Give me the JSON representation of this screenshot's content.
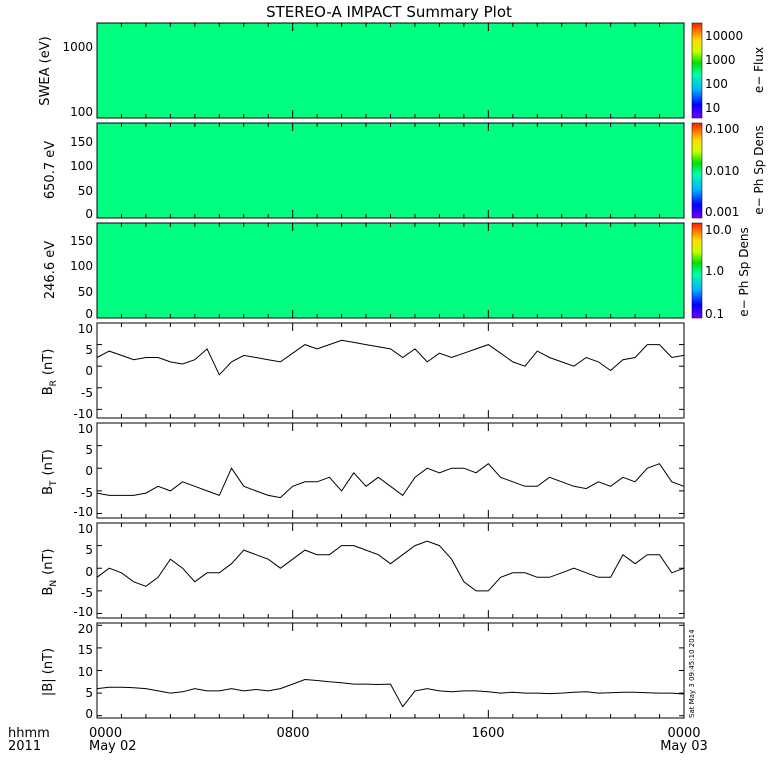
{
  "chart_data": {
    "type": "multi-panel",
    "title": "STEREO-A IMPACT Summary Plot",
    "stamp": "Sat May  3 09:45:10 2014",
    "x_axis": {
      "ticks": [
        "0000",
        "0800",
        "1600",
        "0000"
      ],
      "sub_labels": [
        "May 02",
        "",
        "",
        "May 03"
      ],
      "left_label_top": "hhmm",
      "left_label_bottom": "2011",
      "range_hours": [
        0,
        24
      ]
    },
    "spectrograms": [
      {
        "ylabel": "SWEA (eV)",
        "y_scale": "log",
        "ylim": [
          90,
          2000
        ],
        "yticks": [
          "1000",
          "100"
        ],
        "colorbar": {
          "label": "e− Flux",
          "scale": "log",
          "range": [
            5,
            30000
          ],
          "ticks": [
            "10000",
            "1000",
            "100",
            "10"
          ]
        }
      },
      {
        "ylabel": "650.7 eV",
        "y_scale": "linear",
        "ylim": [
          0,
          180
        ],
        "yticks": [
          "150",
          "100",
          "50",
          "0"
        ],
        "colorbar": {
          "label": "e− Ph Sp Dens",
          "scale": "log",
          "range": [
            0.001,
            0.1
          ],
          "ticks": [
            "0.100",
            "0.010",
            "0.001"
          ]
        }
      },
      {
        "ylabel": "246.6 eV",
        "y_scale": "linear",
        "ylim": [
          0,
          180
        ],
        "yticks": [
          "150",
          "100",
          "50",
          "0"
        ],
        "colorbar": {
          "label": "e− Ph Sp Dens",
          "scale": "log",
          "range": [
            0.1,
            10
          ],
          "ticks": [
            "10.0",
            "1.0",
            "0.1"
          ]
        }
      }
    ],
    "line_panels": [
      {
        "ylabel_main": "B",
        "ylabel_sub": "R",
        "ylabel_unit": "(nT)",
        "ylim": [
          -12,
          10
        ],
        "yticks": [
          "10",
          "5",
          "0",
          "-5",
          "-10"
        ],
        "x": [
          0,
          0.5,
          1,
          1.5,
          2,
          2.5,
          3,
          3.5,
          4,
          4.5,
          5,
          5.5,
          6,
          6.5,
          7,
          7.5,
          8,
          8.5,
          9,
          9.5,
          10,
          10.5,
          11,
          11.5,
          12,
          12.5,
          13,
          13.5,
          14,
          14.5,
          15,
          15.5,
          16,
          16.5,
          17,
          17.5,
          18,
          18.5,
          19,
          19.5,
          20,
          20.5,
          21,
          21.5,
          22,
          22.5,
          23,
          23.5,
          24
        ],
        "y": [
          2,
          3.5,
          2.5,
          1.5,
          2,
          2,
          1,
          0.5,
          1.5,
          4,
          -2,
          1,
          2.5,
          2,
          1.5,
          1,
          3,
          5,
          4,
          5,
          6,
          5.5,
          5,
          4.5,
          4,
          2,
          4,
          1,
          3,
          2,
          3,
          4,
          5,
          3,
          1,
          0,
          3.5,
          2,
          1,
          0,
          2,
          1,
          -1,
          1.5,
          2,
          5,
          5,
          2,
          2.5
        ]
      },
      {
        "ylabel_main": "B",
        "ylabel_sub": "T",
        "ylabel_unit": "(nT)",
        "ylim": [
          -11,
          10
        ],
        "yticks": [
          "10",
          "5",
          "0",
          "-5",
          "-10"
        ],
        "x": [
          0,
          0.5,
          1,
          1.5,
          2,
          2.5,
          3,
          3.5,
          4,
          4.5,
          5,
          5.5,
          6,
          6.5,
          7,
          7.5,
          8,
          8.5,
          9,
          9.5,
          10,
          10.5,
          11,
          11.5,
          12,
          12.5,
          13,
          13.5,
          14,
          14.5,
          15,
          15.5,
          16,
          16.5,
          17,
          17.5,
          18,
          18.5,
          19,
          19.5,
          20,
          20.5,
          21,
          21.5,
          22,
          22.5,
          23,
          23.5,
          24
        ],
        "y": [
          -5.5,
          -6,
          -6,
          -6,
          -5.5,
          -4,
          -5,
          -3,
          -4,
          -5,
          -6,
          0,
          -4,
          -5,
          -6,
          -6.5,
          -4,
          -3,
          -3,
          -2,
          -5,
          -1,
          -4,
          -2,
          -4,
          -6,
          -2,
          0,
          -1,
          0,
          0,
          -1,
          1,
          -2,
          -3,
          -4,
          -4,
          -2,
          -3,
          -4,
          -4.5,
          -3,
          -4,
          -2,
          -3,
          0,
          1,
          -3,
          -4
        ]
      },
      {
        "ylabel_main": "B",
        "ylabel_sub": "N",
        "ylabel_unit": "(nT)",
        "ylim": [
          -11,
          10
        ],
        "yticks": [
          "10",
          "5",
          "0",
          "-5",
          "-10"
        ],
        "x": [
          0,
          0.5,
          1,
          1.5,
          2,
          2.5,
          3,
          3.5,
          4,
          4.5,
          5,
          5.5,
          6,
          6.5,
          7,
          7.5,
          8,
          8.5,
          9,
          9.5,
          10,
          10.5,
          11,
          11.5,
          12,
          12.5,
          13,
          13.5,
          14,
          14.5,
          15,
          15.5,
          16,
          16.5,
          17,
          17.5,
          18,
          18.5,
          19,
          19.5,
          20,
          20.5,
          21,
          21.5,
          22,
          22.5,
          23,
          23.5,
          24
        ],
        "y": [
          -2,
          0,
          -1,
          -3,
          -4,
          -2,
          2,
          0,
          -3,
          -1,
          -1,
          1,
          4,
          3,
          2,
          0,
          2,
          4,
          3,
          3,
          5,
          5,
          4,
          3,
          1,
          3,
          5,
          6,
          5,
          2,
          -3,
          -5,
          -5,
          -2,
          -1,
          -1,
          -2,
          -2,
          -1,
          0,
          -1,
          -2,
          -2,
          3,
          1,
          3,
          3,
          -1,
          0
        ]
      },
      {
        "ylabel_main": "|B| (nT)",
        "ylabel_sub": "",
        "ylabel_unit": "",
        "ylim": [
          -0.5,
          20.5
        ],
        "yticks": [
          "20",
          "15",
          "10",
          "5",
          "0"
        ],
        "x": [
          0,
          0.5,
          1,
          1.5,
          2,
          2.5,
          3,
          3.5,
          4,
          4.5,
          5,
          5.5,
          6,
          6.5,
          7,
          7.5,
          8,
          8.5,
          9,
          9.5,
          10,
          10.5,
          11,
          11.5,
          12,
          12.5,
          13,
          13.5,
          14,
          14.5,
          15,
          15.5,
          16,
          16.5,
          17,
          17.5,
          18,
          18.5,
          19,
          19.5,
          20,
          20.5,
          21,
          21.5,
          22,
          22.5,
          23,
          23.5,
          24
        ],
        "y": [
          6,
          6.3,
          6.3,
          6.2,
          6,
          5.5,
          5,
          5.3,
          6,
          5.5,
          5.5,
          6,
          5.5,
          5.8,
          5.5,
          6,
          7,
          8,
          7.8,
          7.5,
          7.3,
          7,
          7,
          6.9,
          7,
          2,
          5.5,
          6,
          5.5,
          5.3,
          5.5,
          5.5,
          5.3,
          5,
          5.2,
          5,
          5,
          4.9,
          5,
          5.2,
          5.3,
          5,
          5.1,
          5.2,
          5.2,
          5.1,
          5,
          5,
          4.8
        ]
      }
    ]
  }
}
